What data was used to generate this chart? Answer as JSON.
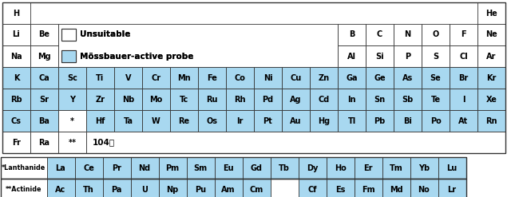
{
  "blue_color": "#a8d8f0",
  "white_color": "#ffffff",
  "bg_color": "#ffffff",
  "border_color": "#333333",
  "legend_unsuitable_label": "Unsuitable",
  "legend_mossbauer_label": "Mössbauer-active probe",
  "elements": [
    {
      "symbol": "H",
      "row": 0,
      "col": 0,
      "color": "white"
    },
    {
      "symbol": "He",
      "row": 0,
      "col": 17,
      "color": "white"
    },
    {
      "symbol": "Li",
      "row": 1,
      "col": 0,
      "color": "white"
    },
    {
      "symbol": "Be",
      "row": 1,
      "col": 1,
      "color": "white"
    },
    {
      "symbol": "B",
      "row": 1,
      "col": 12,
      "color": "white"
    },
    {
      "symbol": "C",
      "row": 1,
      "col": 13,
      "color": "white"
    },
    {
      "symbol": "N",
      "row": 1,
      "col": 14,
      "color": "white"
    },
    {
      "symbol": "O",
      "row": 1,
      "col": 15,
      "color": "white"
    },
    {
      "symbol": "F",
      "row": 1,
      "col": 16,
      "color": "white"
    },
    {
      "symbol": "Ne",
      "row": 1,
      "col": 17,
      "color": "white"
    },
    {
      "symbol": "Na",
      "row": 2,
      "col": 0,
      "color": "white"
    },
    {
      "symbol": "Mg",
      "row": 2,
      "col": 1,
      "color": "white"
    },
    {
      "symbol": "Al",
      "row": 2,
      "col": 12,
      "color": "white"
    },
    {
      "symbol": "Si",
      "row": 2,
      "col": 13,
      "color": "white"
    },
    {
      "symbol": "P",
      "row": 2,
      "col": 14,
      "color": "white"
    },
    {
      "symbol": "S",
      "row": 2,
      "col": 15,
      "color": "white"
    },
    {
      "symbol": "Cl",
      "row": 2,
      "col": 16,
      "color": "white"
    },
    {
      "symbol": "Ar",
      "row": 2,
      "col": 17,
      "color": "white"
    },
    {
      "symbol": "K",
      "row": 3,
      "col": 0,
      "color": "blue"
    },
    {
      "symbol": "Ca",
      "row": 3,
      "col": 1,
      "color": "blue"
    },
    {
      "symbol": "Sc",
      "row": 3,
      "col": 2,
      "color": "blue"
    },
    {
      "symbol": "Ti",
      "row": 3,
      "col": 3,
      "color": "blue"
    },
    {
      "symbol": "V",
      "row": 3,
      "col": 4,
      "color": "blue"
    },
    {
      "symbol": "Cr",
      "row": 3,
      "col": 5,
      "color": "blue"
    },
    {
      "symbol": "Mn",
      "row": 3,
      "col": 6,
      "color": "blue"
    },
    {
      "symbol": "Fe",
      "row": 3,
      "col": 7,
      "color": "blue"
    },
    {
      "symbol": "Co",
      "row": 3,
      "col": 8,
      "color": "blue"
    },
    {
      "symbol": "Ni",
      "row": 3,
      "col": 9,
      "color": "blue"
    },
    {
      "symbol": "Cu",
      "row": 3,
      "col": 10,
      "color": "blue"
    },
    {
      "symbol": "Zn",
      "row": 3,
      "col": 11,
      "color": "blue"
    },
    {
      "symbol": "Ga",
      "row": 3,
      "col": 12,
      "color": "blue"
    },
    {
      "symbol": "Ge",
      "row": 3,
      "col": 13,
      "color": "blue"
    },
    {
      "symbol": "As",
      "row": 3,
      "col": 14,
      "color": "blue"
    },
    {
      "symbol": "Se",
      "row": 3,
      "col": 15,
      "color": "blue"
    },
    {
      "symbol": "Br",
      "row": 3,
      "col": 16,
      "color": "blue"
    },
    {
      "symbol": "Kr",
      "row": 3,
      "col": 17,
      "color": "blue"
    },
    {
      "symbol": "Rb",
      "row": 4,
      "col": 0,
      "color": "blue"
    },
    {
      "symbol": "Sr",
      "row": 4,
      "col": 1,
      "color": "blue"
    },
    {
      "symbol": "Y",
      "row": 4,
      "col": 2,
      "color": "blue"
    },
    {
      "symbol": "Zr",
      "row": 4,
      "col": 3,
      "color": "blue"
    },
    {
      "symbol": "Nb",
      "row": 4,
      "col": 4,
      "color": "blue"
    },
    {
      "symbol": "Mo",
      "row": 4,
      "col": 5,
      "color": "blue"
    },
    {
      "symbol": "Tc",
      "row": 4,
      "col": 6,
      "color": "blue"
    },
    {
      "symbol": "Ru",
      "row": 4,
      "col": 7,
      "color": "blue"
    },
    {
      "symbol": "Rh",
      "row": 4,
      "col": 8,
      "color": "blue"
    },
    {
      "symbol": "Pd",
      "row": 4,
      "col": 9,
      "color": "blue"
    },
    {
      "symbol": "Ag",
      "row": 4,
      "col": 10,
      "color": "blue"
    },
    {
      "symbol": "Cd",
      "row": 4,
      "col": 11,
      "color": "blue"
    },
    {
      "symbol": "In",
      "row": 4,
      "col": 12,
      "color": "blue"
    },
    {
      "symbol": "Sn",
      "row": 4,
      "col": 13,
      "color": "blue"
    },
    {
      "symbol": "Sb",
      "row": 4,
      "col": 14,
      "color": "blue"
    },
    {
      "symbol": "Te",
      "row": 4,
      "col": 15,
      "color": "blue"
    },
    {
      "symbol": "I",
      "row": 4,
      "col": 16,
      "color": "blue"
    },
    {
      "symbol": "Xe",
      "row": 4,
      "col": 17,
      "color": "blue"
    },
    {
      "symbol": "Cs",
      "row": 5,
      "col": 0,
      "color": "blue"
    },
    {
      "symbol": "Ba",
      "row": 5,
      "col": 1,
      "color": "blue"
    },
    {
      "symbol": "*",
      "row": 5,
      "col": 2,
      "color": "white"
    },
    {
      "symbol": "Hf",
      "row": 5,
      "col": 3,
      "color": "blue"
    },
    {
      "symbol": "Ta",
      "row": 5,
      "col": 4,
      "color": "blue"
    },
    {
      "symbol": "W",
      "row": 5,
      "col": 5,
      "color": "blue"
    },
    {
      "symbol": "Re",
      "row": 5,
      "col": 6,
      "color": "blue"
    },
    {
      "symbol": "Os",
      "row": 5,
      "col": 7,
      "color": "blue"
    },
    {
      "symbol": "Ir",
      "row": 5,
      "col": 8,
      "color": "blue"
    },
    {
      "symbol": "Pt",
      "row": 5,
      "col": 9,
      "color": "blue"
    },
    {
      "symbol": "Au",
      "row": 5,
      "col": 10,
      "color": "blue"
    },
    {
      "symbol": "Hg",
      "row": 5,
      "col": 11,
      "color": "blue"
    },
    {
      "symbol": "Tl",
      "row": 5,
      "col": 12,
      "color": "blue"
    },
    {
      "symbol": "Pb",
      "row": 5,
      "col": 13,
      "color": "blue"
    },
    {
      "symbol": "Bi",
      "row": 5,
      "col": 14,
      "color": "blue"
    },
    {
      "symbol": "Po",
      "row": 5,
      "col": 15,
      "color": "blue"
    },
    {
      "symbol": "At",
      "row": 5,
      "col": 16,
      "color": "blue"
    },
    {
      "symbol": "Rn",
      "row": 5,
      "col": 17,
      "color": "blue"
    },
    {
      "symbol": "Fr",
      "row": 6,
      "col": 0,
      "color": "white"
    },
    {
      "symbol": "Ra",
      "row": 6,
      "col": 1,
      "color": "white"
    },
    {
      "symbol": "**",
      "row": 6,
      "col": 2,
      "color": "white"
    },
    {
      "symbol": "La",
      "row": 7,
      "col": 1,
      "color": "blue"
    },
    {
      "symbol": "Ce",
      "row": 7,
      "col": 2,
      "color": "blue"
    },
    {
      "symbol": "Pr",
      "row": 7,
      "col": 3,
      "color": "blue"
    },
    {
      "symbol": "Nd",
      "row": 7,
      "col": 4,
      "color": "blue"
    },
    {
      "symbol": "Pm",
      "row": 7,
      "col": 5,
      "color": "blue"
    },
    {
      "symbol": "Sm",
      "row": 7,
      "col": 6,
      "color": "blue"
    },
    {
      "symbol": "Eu",
      "row": 7,
      "col": 7,
      "color": "blue"
    },
    {
      "symbol": "Gd",
      "row": 7,
      "col": 8,
      "color": "blue"
    },
    {
      "symbol": "Tb",
      "row": 7,
      "col": 9,
      "color": "blue"
    },
    {
      "symbol": "Dy",
      "row": 7,
      "col": 10,
      "color": "blue"
    },
    {
      "symbol": "Ho",
      "row": 7,
      "col": 11,
      "color": "blue"
    },
    {
      "symbol": "Er",
      "row": 7,
      "col": 12,
      "color": "blue"
    },
    {
      "symbol": "Tm",
      "row": 7,
      "col": 13,
      "color": "blue"
    },
    {
      "symbol": "Yb",
      "row": 7,
      "col": 14,
      "color": "blue"
    },
    {
      "symbol": "Lu",
      "row": 7,
      "col": 15,
      "color": "blue"
    },
    {
      "symbol": "Ac",
      "row": 8,
      "col": 1,
      "color": "blue"
    },
    {
      "symbol": "Th",
      "row": 8,
      "col": 2,
      "color": "blue"
    },
    {
      "symbol": "Pa",
      "row": 8,
      "col": 3,
      "color": "blue"
    },
    {
      "symbol": "U",
      "row": 8,
      "col": 4,
      "color": "blue"
    },
    {
      "symbol": "Np",
      "row": 8,
      "col": 5,
      "color": "blue"
    },
    {
      "symbol": "Pu",
      "row": 8,
      "col": 6,
      "color": "blue"
    },
    {
      "symbol": "Am",
      "row": 8,
      "col": 7,
      "color": "blue"
    },
    {
      "symbol": "Cm",
      "row": 8,
      "col": 8,
      "color": "blue"
    },
    {
      "symbol": "Cf",
      "row": 8,
      "col": 10,
      "color": "blue"
    },
    {
      "symbol": "Es",
      "row": 8,
      "col": 11,
      "color": "blue"
    },
    {
      "symbol": "Fm",
      "row": 8,
      "col": 12,
      "color": "blue"
    },
    {
      "symbol": "Md",
      "row": 8,
      "col": 13,
      "color": "blue"
    },
    {
      "symbol": "No",
      "row": 8,
      "col": 14,
      "color": "blue"
    },
    {
      "symbol": "Lr",
      "row": 8,
      "col": 15,
      "color": "blue"
    }
  ]
}
